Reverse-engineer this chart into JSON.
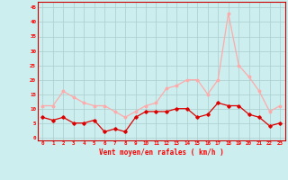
{
  "hours": [
    0,
    1,
    2,
    3,
    4,
    5,
    6,
    7,
    8,
    9,
    10,
    11,
    12,
    13,
    14,
    15,
    16,
    17,
    18,
    19,
    20,
    21,
    22,
    23
  ],
  "wind_avg": [
    7,
    6,
    7,
    5,
    5,
    6,
    2,
    3,
    2,
    7,
    9,
    9,
    9,
    10,
    10,
    7,
    8,
    12,
    11,
    11,
    8,
    7,
    4,
    5
  ],
  "wind_gust": [
    11,
    11,
    16,
    14,
    12,
    11,
    11,
    9,
    7,
    9,
    11,
    12,
    17,
    18,
    20,
    20,
    15,
    20,
    43,
    25,
    21,
    16,
    9,
    11
  ],
  "avg_color": "#dd0000",
  "gust_color": "#ffaaaa",
  "bg_color": "#cceeee",
  "grid_color": "#aacccc",
  "xlabel": "Vent moyen/en rafales ( km/h )",
  "ylabel_ticks": [
    0,
    5,
    10,
    15,
    20,
    25,
    30,
    35,
    40,
    45
  ],
  "ylim": [
    -1,
    47
  ],
  "xlim": [
    -0.5,
    23.5
  ]
}
